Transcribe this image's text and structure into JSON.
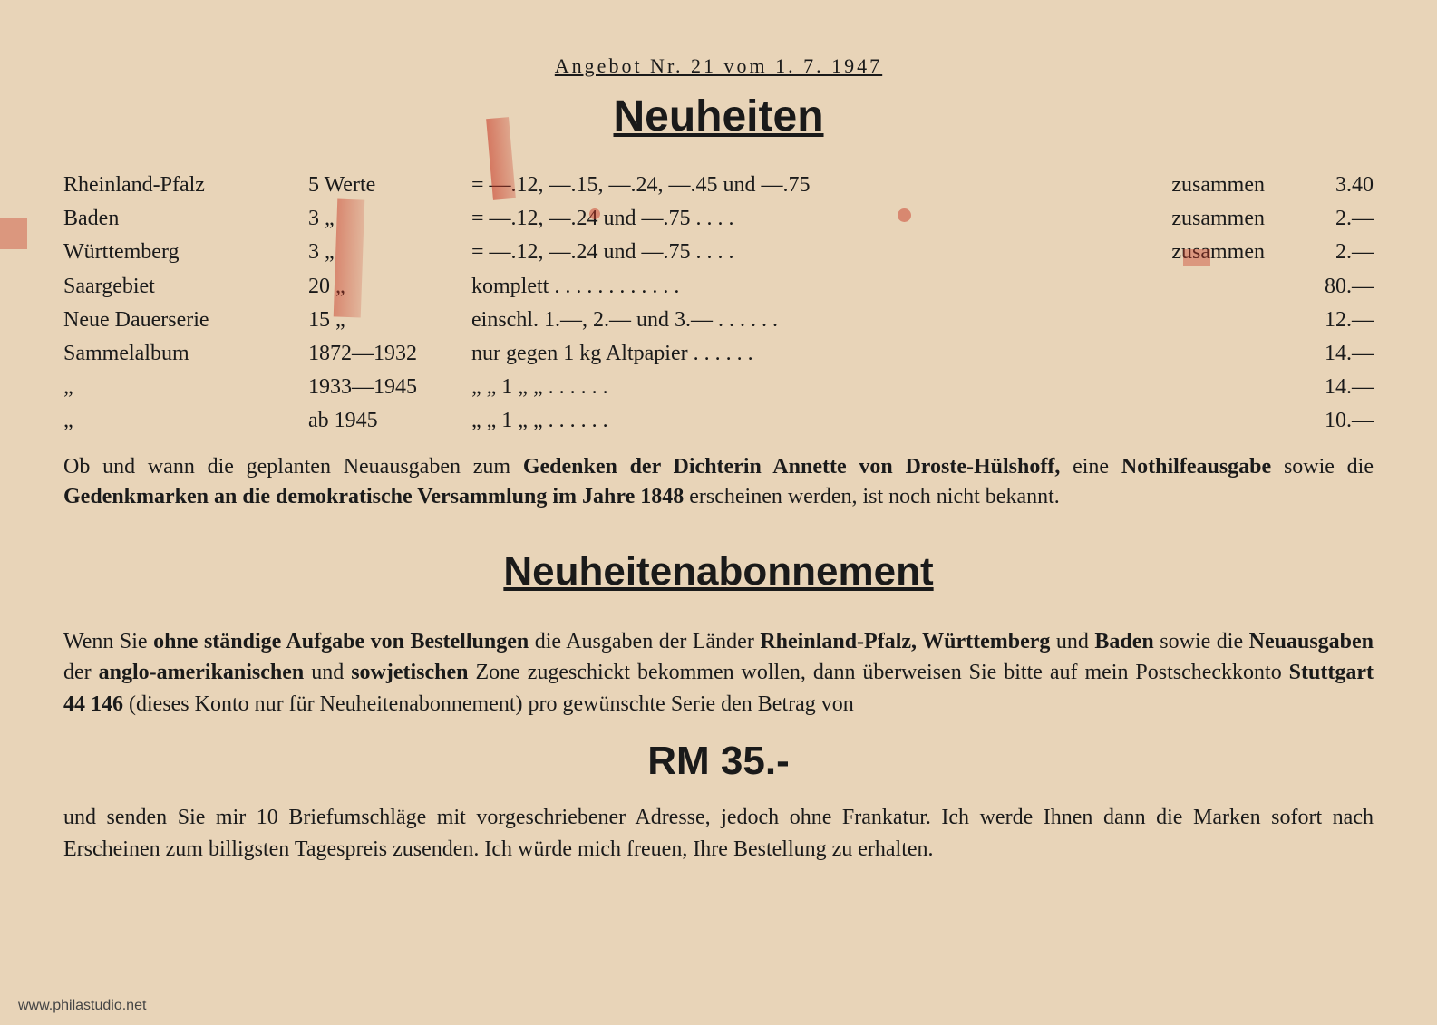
{
  "offerNumber": "Angebot Nr. 21 vom 1. 7. 1947",
  "heading1": "Neuheiten",
  "table": {
    "rows": [
      {
        "name": "Rheinland-Pfalz",
        "qty": "5 Werte",
        "desc": "= —.12, —.15, —.24, —.45 und —.75",
        "sum": "zusammen",
        "price": "3.40"
      },
      {
        "name": "Baden",
        "qty": "3     „",
        "desc": "= —.12, —.24 und —.75 .   .   .   .",
        "sum": "zusammen",
        "price": "2.—"
      },
      {
        "name": "Württemberg",
        "qty": "3     „",
        "desc": "= —.12, —.24 und —.75 .   .   .   .",
        "sum": "zusammen",
        "price": "2.—"
      },
      {
        "name": "Saargebiet",
        "qty": "20     „",
        "desc": "komplett   .   .   .   .   .   .   .   .   .   .   .   .",
        "sum": "",
        "price": "80.—"
      },
      {
        "name": "Neue Dauerserie",
        "qty": "15     „",
        "desc": "einschl. 1.—, 2.— und 3.—   .   .   .   .   .   .",
        "sum": "",
        "price": "12.—"
      },
      {
        "name": "Sammelalbum",
        "qty": "1872—1932",
        "desc": "nur gegen 1 kg Altpapier  .   .   .   .   .   .",
        "sum": "",
        "price": "14.—"
      },
      {
        "name": "        „",
        "qty": "1933—1945",
        "desc": "   „      „     1  „        „        .   .   .   .   .   .",
        "sum": "",
        "price": "14.—"
      },
      {
        "name": "        „",
        "qty": "   ab 1945",
        "desc": "   „      „     1  „        „        .   .   .   .   .   .",
        "sum": "",
        "price": "10.—"
      }
    ]
  },
  "note": {
    "part1": "Ob und wann die geplanten Neuausgaben zum ",
    "bold1": "Gedenken der Dichterin Annette von Droste-Hülshoff,",
    "part2": " eine ",
    "bold2": "Nothilfeausgabe",
    "part3": " sowie die ",
    "bold3": "Gedenkmarken an die demokratische Versammlung im Jahre 1848",
    "part4": " erscheinen werden, ist noch nicht bekannt."
  },
  "heading2": "Neuheitenabonnement",
  "abo": {
    "part1": "Wenn Sie ",
    "bold1": "ohne ständige Aufgabe von Bestellungen",
    "part2": " die Ausgaben der Länder ",
    "bold2": "Rheinland-Pfalz, Württemberg",
    "part3": " und ",
    "bold3": "Baden",
    "part4": " sowie die ",
    "bold4": "Neuausgaben",
    "part5": " der ",
    "bold5": "anglo-amerikanischen",
    "part6": " und ",
    "bold6": "sowjetischen",
    "part7": " Zone zugeschickt bekommen wollen, dann überweisen Sie bitte auf mein Postscheckkonto ",
    "bold7": "Stuttgart 44 146",
    "part8": " (dieses Konto nur für Neuheitenabonnement) pro gewünschte Serie den Betrag von"
  },
  "priceBig": "RM 35.-",
  "closing": "und senden Sie mir 10 Briefumschläge mit vorgeschriebener Adresse, jedoch ohne Frankatur. Ich werde Ihnen dann die Marken sofort nach Erscheinen zum billigsten Tagespreis zusenden. Ich würde mich freuen, Ihre Bestellung zu erhalten.",
  "watermark": "www.philastudio.net"
}
